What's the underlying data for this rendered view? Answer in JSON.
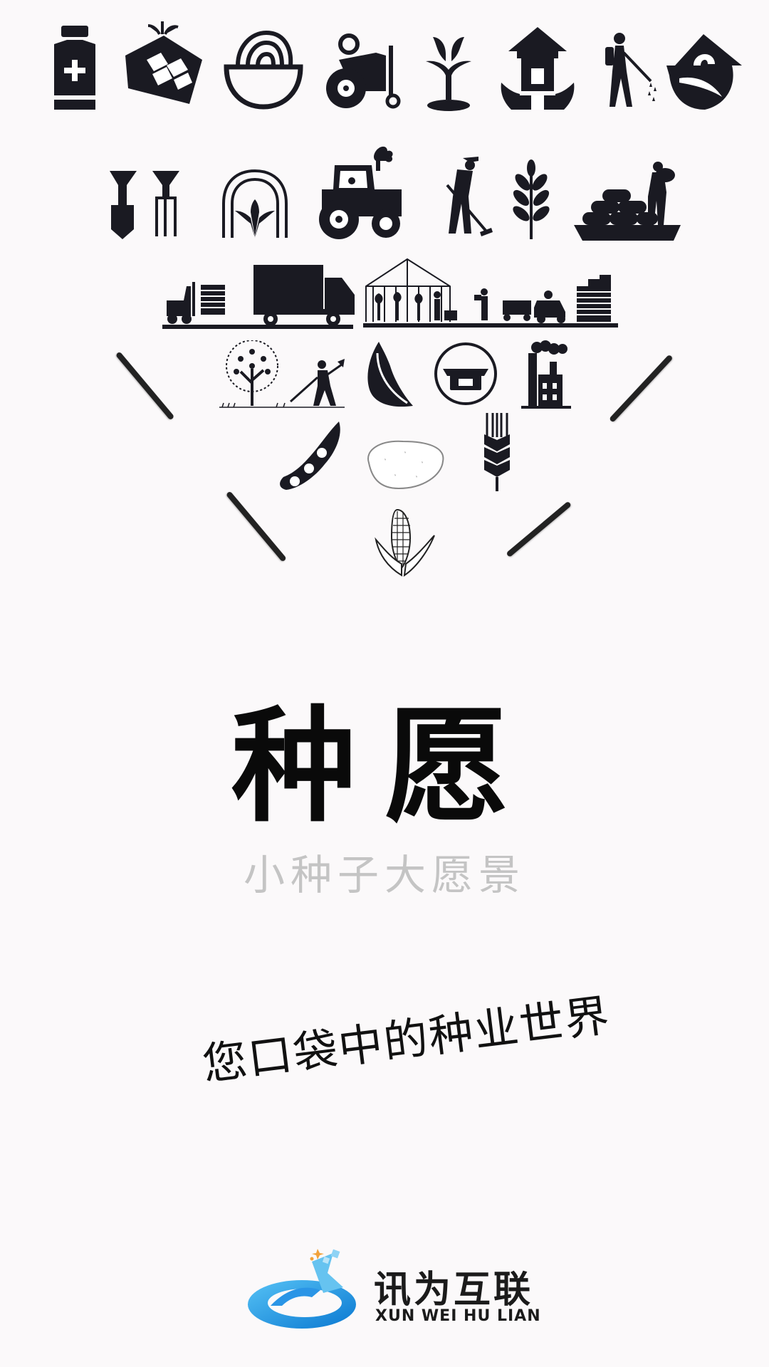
{
  "splash": {
    "app_title": "种愿",
    "subtitle": "小种子大愿景",
    "slogan": "您口袋中的种业世界",
    "brand_name_cn": "讯为互联",
    "brand_name_en": "XUN WEI HU LIAN"
  },
  "icons": [
    "medicine-bottle-icon",
    "seed-bag-icon",
    "noodle-bowl-icon",
    "tractor-icon",
    "sprout-icon",
    "pagoda-house-icon",
    "sprayer-worker-icon",
    "leaf-house-icon",
    "shovel-fork-icon",
    "greenhouse-arch-icon",
    "driving-tractor-icon",
    "hoeing-farmer-icon",
    "wheat-plant-icon",
    "harvest-sacks-icon",
    "logistics-truck-icon",
    "greenhouse-storage-icon",
    "tree-harvest-icon",
    "feather-leaf-icon",
    "seed-packet-icon",
    "factory-icon",
    "soybean-icon",
    "potato-icon",
    "wheat-ear-icon",
    "corn-icon"
  ],
  "colors": {
    "background": "#fbf9fa",
    "icon": "#1a1a22",
    "subtitle": "#c4c4c4",
    "brand_blue": "#1a8fe0",
    "brand_orange": "#f2a23a"
  }
}
